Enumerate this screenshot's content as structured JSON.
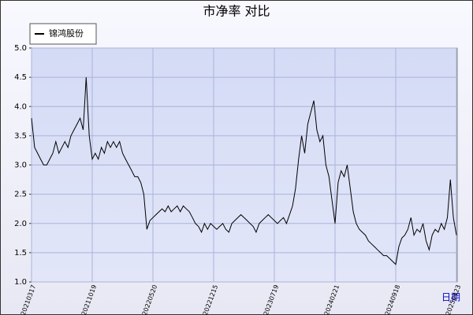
{
  "chart_data": {
    "type": "line",
    "title": "市净率 对比",
    "xlabel": "日期",
    "categories": [
      "20210317",
      null,
      null,
      null,
      null,
      null,
      null,
      null,
      null,
      null,
      null,
      null,
      null,
      null,
      null,
      null,
      null,
      null,
      null,
      null,
      "20211019",
      null,
      null,
      null,
      null,
      null,
      null,
      null,
      null,
      null,
      null,
      null,
      null,
      null,
      null,
      null,
      null,
      null,
      null,
      null,
      "20220520",
      null,
      null,
      null,
      null,
      null,
      null,
      null,
      null,
      null,
      null,
      null,
      null,
      null,
      null,
      null,
      null,
      null,
      null,
      null,
      "20221215",
      null,
      null,
      null,
      null,
      null,
      null,
      null,
      null,
      null,
      null,
      null,
      null,
      null,
      null,
      null,
      null,
      null,
      null,
      null,
      "20230719",
      null,
      null,
      null,
      null,
      null,
      null,
      null,
      null,
      null,
      null,
      null,
      null,
      null,
      null,
      null,
      null,
      null,
      null,
      null,
      "20240221",
      null,
      null,
      null,
      null,
      null,
      null,
      null,
      null,
      null,
      null,
      null,
      null,
      null,
      null,
      null,
      null,
      null,
      null,
      null,
      "20240918",
      null,
      null,
      null,
      null,
      null,
      null,
      null,
      null,
      null,
      null,
      null,
      null,
      null,
      null,
      null,
      null,
      null,
      null,
      null,
      "20250423"
    ],
    "series": [
      {
        "name": "锦鸿股份",
        "color": "#000000",
        "values": [
          3.8,
          3.3,
          3.2,
          3.1,
          3.0,
          3.0,
          3.1,
          3.2,
          3.4,
          3.2,
          3.3,
          3.4,
          3.3,
          3.5,
          3.6,
          3.7,
          3.8,
          3.6,
          4.5,
          3.5,
          3.1,
          3.2,
          3.1,
          3.3,
          3.2,
          3.4,
          3.3,
          3.4,
          3.3,
          3.4,
          3.2,
          3.1,
          3.0,
          2.9,
          2.8,
          2.8,
          2.7,
          2.5,
          1.9,
          2.05,
          2.1,
          2.15,
          2.2,
          2.25,
          2.2,
          2.3,
          2.2,
          2.25,
          2.3,
          2.2,
          2.3,
          2.25,
          2.2,
          2.1,
          2.0,
          1.95,
          1.85,
          2.0,
          1.9,
          2.0,
          1.95,
          1.9,
          1.95,
          2.0,
          1.9,
          1.85,
          2.0,
          2.05,
          2.1,
          2.15,
          2.1,
          2.05,
          2.0,
          1.95,
          1.85,
          2.0,
          2.05,
          2.1,
          2.15,
          2.1,
          2.05,
          2.0,
          2.05,
          2.1,
          2.0,
          2.15,
          2.3,
          2.6,
          3.1,
          3.5,
          3.2,
          3.7,
          3.9,
          4.1,
          3.6,
          3.4,
          3.5,
          3.0,
          2.8,
          2.4,
          2.0,
          2.7,
          2.9,
          2.8,
          3.0,
          2.6,
          2.2,
          2.0,
          1.9,
          1.85,
          1.8,
          1.7,
          1.65,
          1.6,
          1.55,
          1.5,
          1.45,
          1.45,
          1.4,
          1.35,
          1.3,
          1.6,
          1.75,
          1.8,
          1.9,
          2.1,
          1.8,
          1.9,
          1.85,
          2.0,
          1.7,
          1.55,
          1.8,
          1.9,
          1.85,
          2.0,
          1.9,
          2.1,
          2.75,
          2.1,
          1.8
        ]
      }
    ],
    "ylim": [
      1,
      5
    ],
    "yticks": [
      {
        "value": 1,
        "label": "1.0"
      },
      1.5,
      {
        "value": 2,
        "label": "2.0"
      },
      2.5,
      {
        "value": 3,
        "label": "3.0"
      },
      3.5,
      {
        "value": 4,
        "label": "4.0"
      },
      4.5,
      {
        "value": 5,
        "label": "5.0"
      }
    ],
    "grid": true
  }
}
